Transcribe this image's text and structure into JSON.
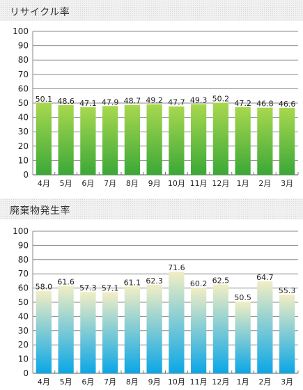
{
  "chart_data": [
    {
      "type": "bar",
      "title": "リサイクル率",
      "categories": [
        "4月",
        "5月",
        "6月",
        "7月",
        "8月",
        "9月",
        "10月",
        "11月",
        "12月",
        "1月",
        "2月",
        "3月"
      ],
      "values": [
        50.1,
        48.6,
        47.1,
        47.9,
        48.7,
        49.2,
        47.7,
        49.3,
        50.2,
        47.2,
        46.8,
        46.6
      ],
      "value_labels": [
        "50.1",
        "48.6",
        "47.1",
        "47.9",
        "48.7",
        "49.2",
        "47.7",
        "49.3",
        "50.2",
        "47.2",
        "46.8",
        "46.6"
      ],
      "ylim": [
        0,
        100
      ],
      "yticks": [
        "0",
        "10",
        "20",
        "30",
        "40",
        "50",
        "60",
        "70",
        "80",
        "90",
        "100"
      ],
      "grid": true,
      "colors": {
        "bar_top": "#a8d84f",
        "bar_bottom": "#3ba837"
      }
    },
    {
      "type": "bar",
      "title": "廃棄物発生率",
      "categories": [
        "4月",
        "5月",
        "6月",
        "7月",
        "8月",
        "9月",
        "10月",
        "11月",
        "12月",
        "1月",
        "2月",
        "3月"
      ],
      "values": [
        58.0,
        61.6,
        57.3,
        57.1,
        61.1,
        62.3,
        71.6,
        60.2,
        62.5,
        50.5,
        64.7,
        55.3
      ],
      "value_labels": [
        "58.0",
        "61.6",
        "57.3",
        "57.1",
        "61.1",
        "62.3",
        "71.6",
        "60.2",
        "62.5",
        "50.5",
        "64.7",
        "55.3"
      ],
      "ylim": [
        0,
        100
      ],
      "yticks": [
        "0",
        "10",
        "20",
        "30",
        "40",
        "50",
        "60",
        "70",
        "80",
        "90",
        "100"
      ],
      "grid": true,
      "colors": {
        "bar_top": "#f2eec4",
        "bar_bottom": "#0aa7e6"
      }
    }
  ]
}
